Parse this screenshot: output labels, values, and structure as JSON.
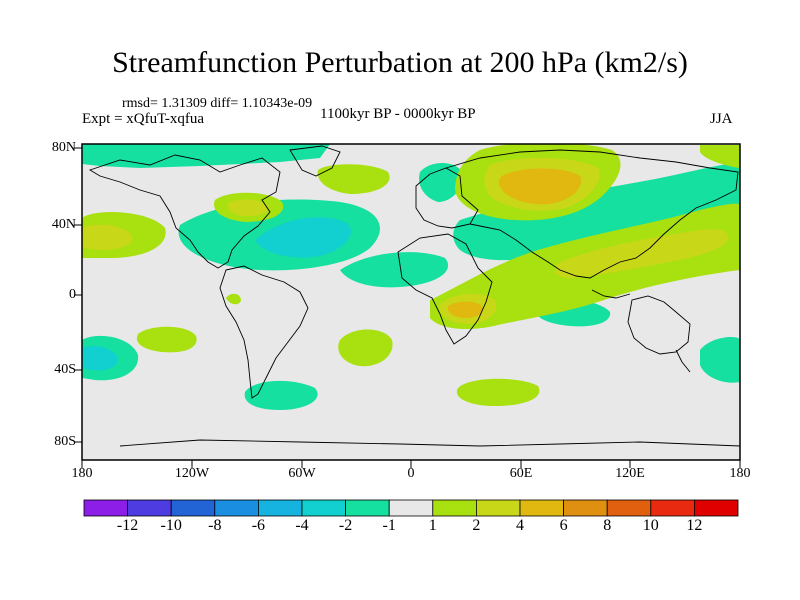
{
  "title": "Streamfunction Perturbation at 200 hPa (km2/s)",
  "stats": "rmsd= 1.31309 diff= 1.10343e-09",
  "experiment": "Expt = xQfuT-xqfua",
  "period": "1100kyr BP - 0000kyr BP",
  "season": "JJA",
  "lat_labels": [
    "80N",
    "40N",
    "0",
    "40S",
    "80S"
  ],
  "lon_labels": [
    "180",
    "120W",
    "60W",
    "0",
    "60E",
    "120E",
    "180"
  ],
  "colorbar": {
    "labels": [
      "-12",
      "-10",
      "-8",
      "-6",
      "-4",
      "-2",
      "-1",
      "1",
      "2",
      "4",
      "6",
      "8",
      "10",
      "12"
    ],
    "colors": [
      "#8c1ee8",
      "#4f3ce0",
      "#2263d6",
      "#1a8ee0",
      "#16b3e0",
      "#12d0d0",
      "#15e0a0",
      "#e8e8e8",
      "#a8e010",
      "#c8d818",
      "#e0b810",
      "#e09010",
      "#e06010",
      "#e82a10",
      "#e00000"
    ]
  },
  "map_colors": {
    "background": "#e8e8e8",
    "neg1": "#15e0a0",
    "neg2": "#12d0d0",
    "pos1": "#a8e010",
    "pos2": "#c8d818",
    "pos3": "#e0b810"
  }
}
